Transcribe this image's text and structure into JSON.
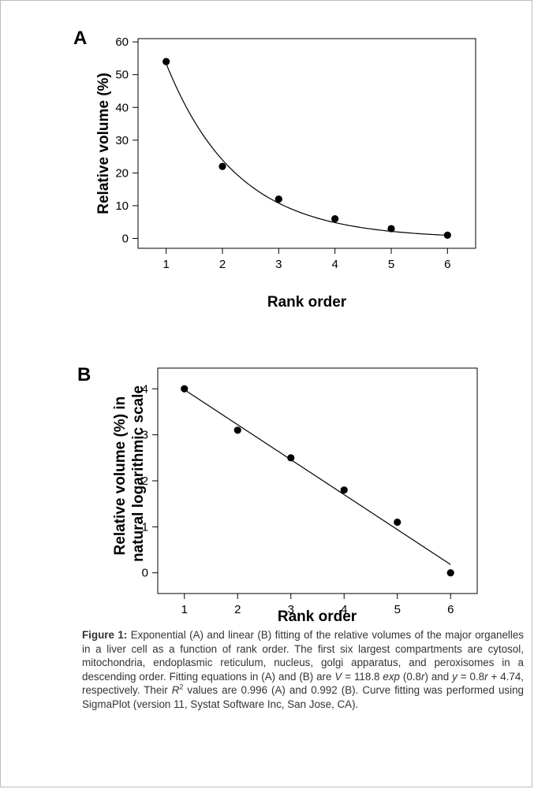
{
  "chart_data": [
    {
      "panel": "A",
      "type": "scatter",
      "xlabel": "Rank order",
      "ylabel": "Relative volume (%)",
      "xticks": [
        1,
        2,
        3,
        4,
        5,
        6
      ],
      "yticks": [
        0,
        10,
        20,
        30,
        40,
        50,
        60
      ],
      "xlim": [
        0.5,
        6.5
      ],
      "ylim": [
        -3,
        61
      ],
      "grid": false,
      "series": [
        {
          "x": [
            1,
            2,
            3,
            4,
            5,
            6
          ],
          "values": [
            54,
            22,
            12,
            6,
            3,
            1
          ]
        }
      ],
      "fit": {
        "kind": "exponential",
        "a": 118.8,
        "b": -0.8
      }
    },
    {
      "panel": "B",
      "type": "scatter",
      "xlabel": "Rank order",
      "ylabel": "Relative volume (%) in natural logarithmic scale",
      "ylabel_lines": [
        "Relative volume (%) in",
        "natural logarithmic scale"
      ],
      "xticks": [
        1,
        2,
        3,
        4,
        5,
        6
      ],
      "yticks": [
        0,
        1,
        2,
        3,
        4
      ],
      "xlim": [
        0.5,
        6.5
      ],
      "ylim": [
        -0.45,
        4.45
      ],
      "grid": false,
      "series": [
        {
          "x": [
            1,
            2,
            3,
            4,
            5,
            6
          ],
          "values": [
            4.0,
            3.1,
            2.5,
            1.8,
            1.1,
            0.0
          ]
        }
      ],
      "fit": {
        "kind": "linear",
        "slope": -0.76,
        "intercept": 4.74
      }
    }
  ],
  "caption": {
    "label": "Figure 1:",
    "t1": " Exponential (A) and linear (B) fitting of the relative volumes of the major organelles in a liver cell as a function of rank order. The first six largest compartments are cytosol, mitochondria, endoplasmic reticulum, nucleus, golgi apparatus, and peroxisomes in a descending order. Fitting equations in (A) and (B) are ",
    "v": "V",
    "t2": " = 118.8 ",
    "exp": "exp",
    "t3": " (0.8",
    "r1": "r",
    "t4": ") and ",
    "y": "y",
    "t5": " = 0.8",
    "r2": "r",
    "t6": " + 4.74, respectively. Their ",
    "R": "R",
    "sup": "2",
    "t7": " values are 0.996 (A) and 0.992 (B). Curve fitting was performed using SigmaPlot (version 11, Systat Software Inc, San Jose, CA)."
  }
}
